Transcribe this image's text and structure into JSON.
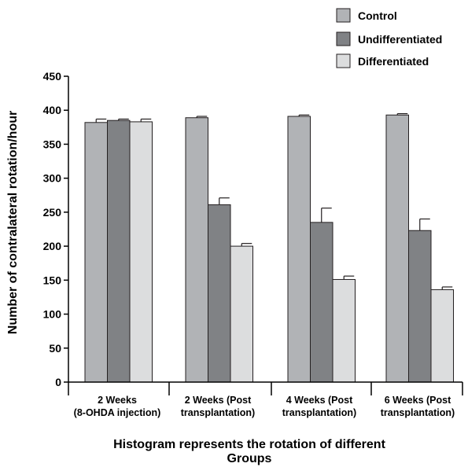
{
  "chart_data": {
    "type": "bar",
    "categories": [
      [
        "2 Weeks",
        "(8-OHDA injection)"
      ],
      [
        "2 Weeks (Post",
        "transplantation)"
      ],
      [
        "4 Weeks (Post",
        "transplantation)"
      ],
      [
        "6 Weeks (Post",
        "transplantation)"
      ]
    ],
    "series": [
      {
        "name": "Control",
        "color": "#b1b3b6",
        "values": [
          382,
          389,
          391,
          393
        ],
        "errors": [
          5,
          2,
          2,
          2
        ]
      },
      {
        "name": "Undifferentiated",
        "color": "#808285",
        "values": [
          385,
          261,
          235,
          223
        ],
        "errors": [
          2,
          10,
          21,
          17
        ]
      },
      {
        "name": "Differentiated",
        "color": "#dcddde",
        "values": [
          383,
          200,
          151,
          136
        ],
        "errors": [
          4,
          4,
          5,
          4
        ]
      }
    ],
    "ylabel": "Number of contralateral rotation/hour",
    "xlabel": [
      "Histogram represents the rotation of different",
      "Groups"
    ],
    "ylim": [
      0,
      450
    ],
    "yticks": [
      0,
      50,
      100,
      150,
      200,
      250,
      300,
      350,
      400,
      450
    ],
    "legend_position": "top-right",
    "grid": false
  }
}
